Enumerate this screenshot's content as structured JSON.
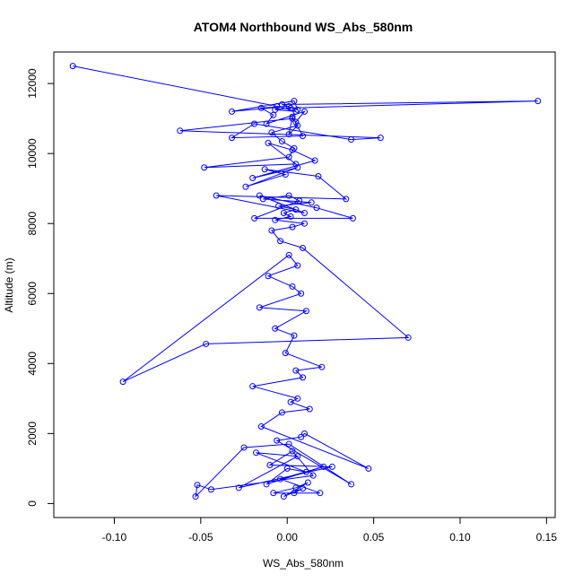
{
  "chart_data": {
    "type": "scatter",
    "mode": "lines+markers",
    "title": "ATOM4 Northbound WS_Abs_580nm",
    "xlabel": "WS_Abs_580nm",
    "ylabel": "Altitude (m)",
    "xlim": [
      -0.135,
      0.155
    ],
    "ylim": [
      -400,
      12900
    ],
    "xticks": [
      -0.1,
      -0.05,
      0.0,
      0.05,
      0.1,
      0.15
    ],
    "xtick_labels": [
      "-0.10",
      "-0.05",
      "0.00",
      "0.05",
      "0.10",
      "0.15"
    ],
    "yticks": [
      0,
      2000,
      4000,
      6000,
      8000,
      10000,
      12000
    ],
    "ytick_labels": [
      "0",
      "2000",
      "4000",
      "6000",
      "8000",
      "10000",
      "12000"
    ],
    "grid": false,
    "series_color": "#0000ff",
    "x": [
      0.004,
      0.009,
      -0.002,
      0.012,
      0.005,
      -0.008,
      0.019,
      -0.004,
      0.021,
      -0.012,
      0.0,
      0.011,
      -0.018,
      0.006,
      -0.028,
      0.026,
      -0.01,
      0.003,
      0.015,
      -0.044,
      -0.052,
      -0.053,
      -0.025,
      0.001,
      0.037,
      -0.006,
      0.008,
      0.01,
      0.047,
      -0.015,
      -0.003,
      0.013,
      0.002,
      0.006,
      -0.02,
      0.009,
      0.005,
      0.02,
      -0.001,
      0.004,
      -0.007,
      0.011,
      -0.016,
      0.008,
      0.003,
      -0.011,
      0.006,
      0.001,
      -0.095,
      -0.047,
      0.07,
      0.009,
      -0.004,
      -0.009,
      0.003,
      0.01,
      -0.007,
      0.002,
      -0.002,
      0.005,
      -0.005,
      0.014,
      -0.014,
      0.001,
      0.007,
      -0.019,
      0.038,
      0.017,
      -0.016,
      0.01,
      -0.041,
      0.034,
      0.018,
      -0.013,
      -0.001,
      -0.024,
      0.006,
      -0.02,
      0.016,
      0.003,
      -0.011,
      0.005,
      -0.048,
      0.001,
      0.004,
      -0.003,
      -0.009,
      0.006,
      0.001,
      0.003,
      0.009,
      -0.032,
      -0.019,
      0.037,
      0.054,
      -0.062,
      0.003,
      0.005,
      0.01,
      -0.012,
      -0.008,
      -0.015,
      0.001,
      -0.032,
      0.004,
      0.006,
      -0.003,
      0.145,
      0.002,
      -0.007,
      0.005,
      -0.006,
      -0.124
    ],
    "y": [
      300,
      430,
      200,
      600,
      450,
      300,
      300,
      700,
      1050,
      550,
      1000,
      900,
      1450,
      1350,
      450,
      1050,
      1100,
      1500,
      800,
      400,
      530,
      200,
      1600,
      1700,
      550,
      1800,
      1900,
      2000,
      1000,
      2200,
      2600,
      2700,
      2900,
      3000,
      3350,
      3600,
      3800,
      3900,
      4300,
      4800,
      5000,
      5500,
      5600,
      6000,
      6200,
      6500,
      6800,
      7100,
      3480,
      4560,
      4740,
      7300,
      7500,
      7800,
      7900,
      8000,
      8100,
      8200,
      8300,
      8400,
      8500,
      8600,
      8700,
      8800,
      8650,
      8150,
      8150,
      8450,
      8800,
      8300,
      8800,
      8700,
      9350,
      9550,
      9400,
      9050,
      9600,
      9300,
      9800,
      10100,
      10300,
      9700,
      9600,
      9900,
      10150,
      10350,
      10600,
      10800,
      10550,
      11050,
      10500,
      10450,
      10850,
      10400,
      10450,
      10650,
      11000,
      10900,
      11200,
      10850,
      11100,
      11300,
      11350,
      11200,
      11500,
      11250,
      11400,
      11500,
      11300,
      11250,
      11200,
      11350,
      12500
    ]
  }
}
